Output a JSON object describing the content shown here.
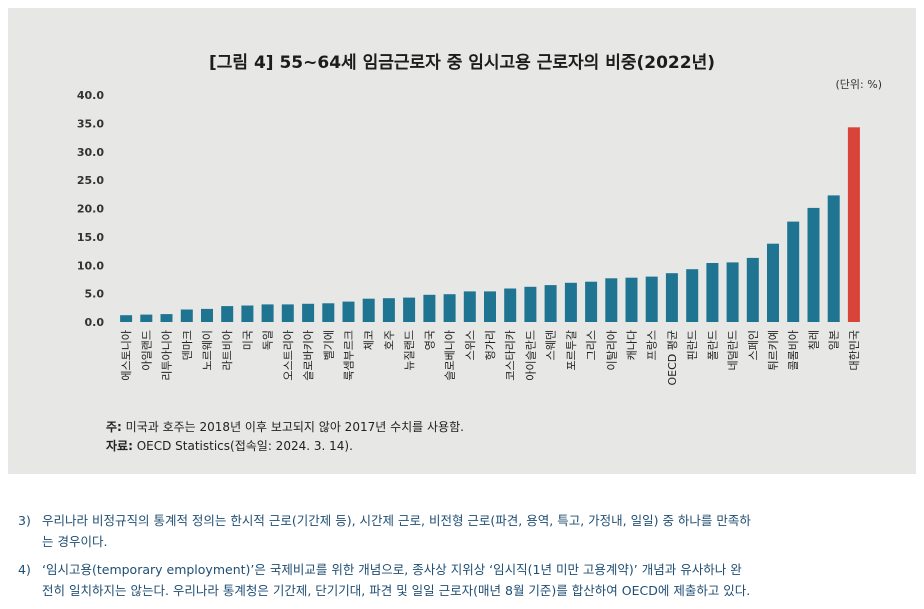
{
  "figure": {
    "title": "[그림 4] 55~64세 임금근로자 중 임시고용 근로자의 비중(2022년)",
    "unit": "(단위: %)",
    "note_lead": "주:",
    "note_text": " 미국과 호주는 2018년 이후 보고되지 않아 2017년 수치를 사용함.",
    "source_lead": "자료:",
    "source_text": " OECD Statistics(접속일: 2024. 3. 14)."
  },
  "colors": {
    "bar": "#1f7491",
    "highlight": "#d9443a",
    "panel": "#e7e7e6",
    "footnote": "#1f4e73"
  },
  "chart_data": {
    "type": "bar",
    "title": "[그림 4] 55~64세 임금근로자 중 임시고용 근로자의 비중(2022년)",
    "ylabel": "(단위: %)",
    "ylim": [
      0,
      40
    ],
    "yticks": [
      "0.0",
      "5.0",
      "10.0",
      "15.0",
      "20.0",
      "25.0",
      "30.0",
      "35.0",
      "40.0"
    ],
    "grid": false,
    "highlight_category": "대한민국",
    "categories": [
      "에스토니아",
      "아일랜드",
      "리투아니아",
      "덴마크",
      "노르웨이",
      "라트비아",
      "미국",
      "독일",
      "오스트리아",
      "슬로바키아",
      "벨기에",
      "룩셈부르크",
      "체코",
      "호주",
      "뉴질랜드",
      "영국",
      "슬로베니아",
      "스위스",
      "헝가리",
      "코스타리카",
      "아이슬란드",
      "스웨덴",
      "포르투갈",
      "그리스",
      "이탈리아",
      "캐나다",
      "프랑스",
      "OECD 평균",
      "핀란드",
      "폴란드",
      "네덜란드",
      "스페인",
      "튀르키예",
      "콜롬비아",
      "칠레",
      "일본",
      "대한민국"
    ],
    "values": [
      1.2,
      1.3,
      1.4,
      2.2,
      2.3,
      2.8,
      2.9,
      3.1,
      3.1,
      3.2,
      3.3,
      3.6,
      4.1,
      4.2,
      4.3,
      4.8,
      4.9,
      5.4,
      5.4,
      5.9,
      6.2,
      6.5,
      6.9,
      7.1,
      7.7,
      7.8,
      8.0,
      8.6,
      9.3,
      10.4,
      10.5,
      11.3,
      13.8,
      17.7,
      20.1,
      22.3,
      34.3
    ]
  },
  "footnotes": [
    {
      "num": "3)",
      "line1": "우리나라 비정규직의 통계적 정의는 한시적 근로(기간제 등), 시간제 근로, 비전형 근로(파견, 용역, 특고, 가정내, 일일) 중 하나를 만족하",
      "line2": "는 경우이다."
    },
    {
      "num": "4)",
      "line1": "‘임시고용(temporary employment)’은 국제비교를 위한 개념으로, 종사상 지위상 ‘임시직(1년 미만 고용계약)’ 개념과 유사하나 완",
      "line2": "전히 일치하지는 않는다. 우리나라 통계청은 기간제, 단기기대, 파견 및 일일 근로자(매년 8월 기준)를 합산하여 OECD에 제출하고 있다."
    }
  ]
}
